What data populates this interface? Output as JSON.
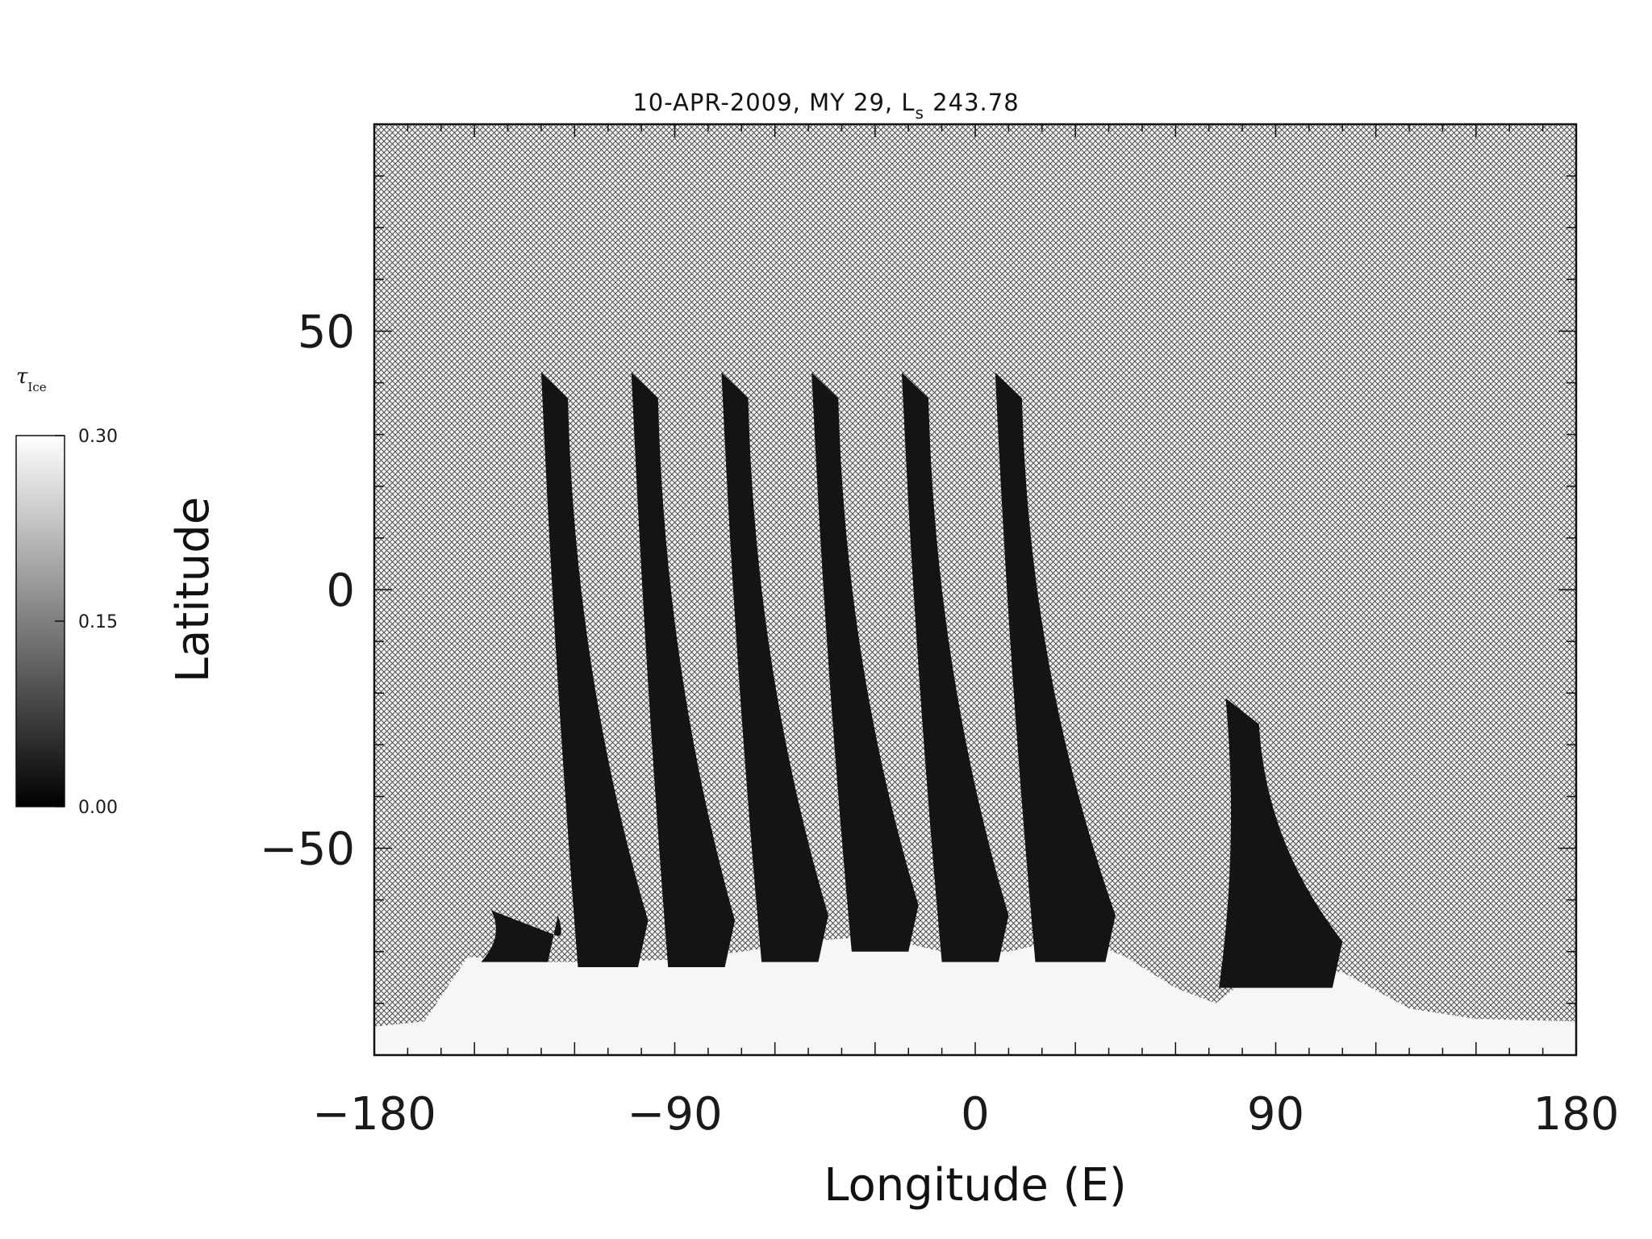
{
  "title": {
    "prefix": "10-APR-2009, MY 29,  L",
    "subscript": "s",
    "suffix": " 243.78"
  },
  "colorbar": {
    "label_symbol": "τ",
    "label_subscript": "Ice",
    "ticks": [
      "0.30",
      "0.15",
      "0.00"
    ],
    "min": 0.0,
    "max": 0.3
  },
  "chart_data": {
    "type": "heatmap",
    "title": "10-APR-2009, MY 29,  Ls 243.78",
    "xlabel": "Longitude (E)",
    "ylabel": "Latitude",
    "xlim": [
      -180,
      180
    ],
    "ylim": [
      -90,
      90
    ],
    "x_ticks": [
      "-180",
      "-90",
      "0",
      "90",
      "180"
    ],
    "y_ticks": [
      "50",
      "0",
      "-50"
    ],
    "colormap": "grayscale black (0.00) to white (0.30)",
    "missing_data": "crosshatch",
    "swaths": [
      {
        "lon_top": [
          -130,
          -122
        ],
        "lat_top": 42,
        "lat_bottom": -73,
        "lon_bottom": [
          -119,
          -98
        ]
      },
      {
        "lon_top": [
          -103,
          -95
        ],
        "lat_top": 42,
        "lat_bottom": -73,
        "lon_bottom": [
          -92,
          -72
        ]
      },
      {
        "lon_top": [
          -76,
          -68
        ],
        "lat_top": 42,
        "lat_bottom": -72,
        "lon_bottom": [
          -64,
          -44
        ]
      },
      {
        "lon_top": [
          -49,
          -41
        ],
        "lat_top": 42,
        "lat_bottom": -70,
        "lon_bottom": [
          -37,
          -17
        ]
      },
      {
        "lon_top": [
          -22,
          -14
        ],
        "lat_top": 42,
        "lat_bottom": -72,
        "lon_bottom": [
          -10,
          10
        ]
      },
      {
        "lon_top": [
          6,
          14
        ],
        "lat_top": 42,
        "lat_bottom": -72,
        "lon_bottom": [
          18,
          42
        ]
      },
      {
        "lon_top": [
          75,
          85
        ],
        "lat_top": -21,
        "lat_bottom": -77,
        "lon_bottom": [
          73,
          110
        ]
      },
      {
        "lon_top": [
          -145,
          -125
        ],
        "lat_top": -62,
        "lat_bottom": -72,
        "lon_bottom": [
          -148,
          -125
        ]
      }
    ],
    "bright_region": "southern polar band lat below about -70, tau near 0.30"
  },
  "colors": {
    "background": "#ffffff",
    "axis": "#111111",
    "swath": "#141414",
    "hatch": "#4a4a4a"
  }
}
